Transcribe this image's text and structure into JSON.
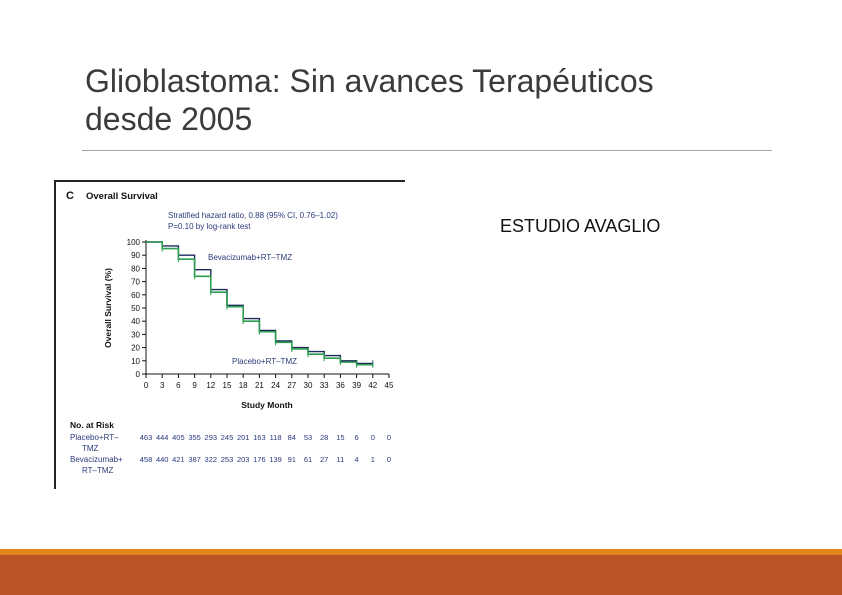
{
  "slide": {
    "title_line1": "Glioblastoma: Sin avances Terapéuticos",
    "title_line2": "desde 2005",
    "study_label": "ESTUDIO AVAGLIO"
  },
  "colors": {
    "orange": "#e0861a",
    "rust": "#bb5528",
    "green": "#2e9e50",
    "navy": "#1f2a5c"
  },
  "chart_data": {
    "type": "line",
    "panel_letter": "C",
    "title": "Overall Survival",
    "stats_line1": "Stratified hazard ratio, 0.88 (95% CI, 0.76–1.02)",
    "stats_line2": "P=0.10 by log-rank test",
    "xlabel": "Study Month",
    "ylabel": "Overall Survival (%)",
    "xlim": [
      0,
      45
    ],
    "ylim": [
      0,
      100
    ],
    "x_ticks": [
      0,
      3,
      6,
      9,
      12,
      15,
      18,
      21,
      24,
      27,
      30,
      33,
      36,
      39,
      42,
      45
    ],
    "y_ticks": [
      0,
      10,
      20,
      30,
      40,
      50,
      60,
      70,
      80,
      90,
      100
    ],
    "series": [
      {
        "name": "Bevacizumab+RT–TMZ",
        "color": "#1f2a5c",
        "x": [
          0,
          3,
          6,
          9,
          12,
          15,
          18,
          21,
          24,
          27,
          30,
          33,
          36,
          39,
          42
        ],
        "y": [
          100,
          97,
          90,
          79,
          64,
          52,
          42,
          33,
          25,
          20,
          17,
          14,
          10,
          8,
          8
        ]
      },
      {
        "name": "Placebo+RT–TMZ",
        "color": "#2e9e50",
        "x": [
          0,
          3,
          6,
          9,
          12,
          15,
          18,
          21,
          24,
          27,
          30,
          33,
          36,
          39,
          42
        ],
        "y": [
          100,
          95,
          87,
          74,
          62,
          51,
          40,
          32,
          24,
          19,
          15,
          12,
          9,
          7,
          7
        ]
      }
    ],
    "risk_table": {
      "header": "No. at Risk",
      "rows": [
        {
          "label_line1": "Placebo+RT–",
          "label_line2": "TMZ",
          "values": [
            "463",
            "444",
            "405",
            "355",
            "293",
            "245",
            "201",
            "163",
            "118",
            "84",
            "53",
            "28",
            "15",
            "6",
            "0",
            "0"
          ]
        },
        {
          "label_line1": "Bevacizumab+",
          "label_line2": "RT–TMZ",
          "values": [
            "458",
            "440",
            "421",
            "387",
            "322",
            "253",
            "203",
            "176",
            "139",
            "91",
            "61",
            "27",
            "11",
            "4",
            "1",
            "0"
          ]
        }
      ]
    }
  }
}
